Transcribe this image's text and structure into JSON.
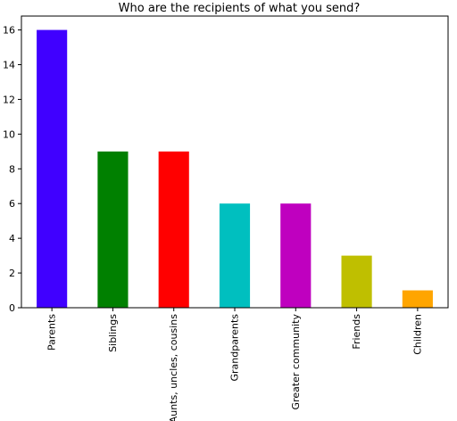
{
  "chart_data": {
    "type": "bar",
    "title": "Who are the recipients of what you send?",
    "xlabel": "",
    "ylabel": "",
    "categories": [
      "Parents",
      "Siblings",
      "Aunts, uncles, cousins",
      "Grandparents",
      "Greater community",
      "Friends",
      "Children"
    ],
    "values": [
      16,
      9,
      9,
      6,
      6,
      3,
      1
    ],
    "colors": [
      "#4000ff",
      "#008000",
      "#ff0000",
      "#00bfbf",
      "#bf00bf",
      "#bfbf00",
      "#ffa500"
    ],
    "ylim": [
      0,
      16.8
    ],
    "yticks": [
      0,
      2,
      4,
      6,
      8,
      10,
      12,
      14,
      16
    ],
    "grid": false,
    "legend": "none"
  }
}
